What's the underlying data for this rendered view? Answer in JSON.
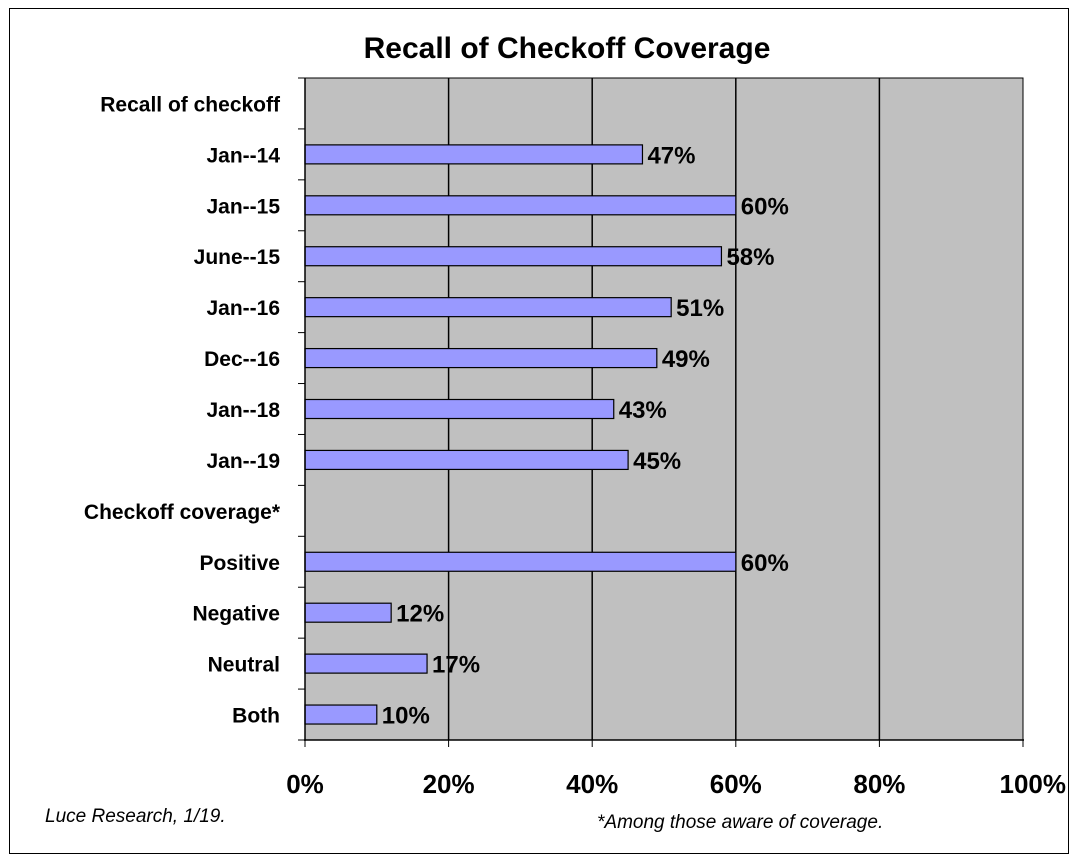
{
  "chart_data": {
    "type": "bar",
    "orientation": "horizontal",
    "title": "Recall of Checkoff Coverage",
    "xlabel": "",
    "ylabel": "",
    "xlim": [
      0,
      100
    ],
    "grid": true,
    "legend": "none",
    "categories": [
      "Recall of checkoff",
      "Jan--14",
      "Jan--15",
      "June--15",
      "Jan--16",
      "Dec--16",
      "Jan--18",
      "Jan--19",
      "Checkoff coverage*",
      "Positive",
      "Negative",
      "Neutral",
      "Both"
    ],
    "values": [
      null,
      47,
      60,
      58,
      51,
      49,
      43,
      45,
      null,
      60,
      12,
      17,
      10
    ],
    "value_labels": [
      "",
      "47%",
      "60%",
      "58%",
      "51%",
      "49%",
      "43%",
      "45%",
      "",
      "60%",
      "12%",
      "17%",
      "10%"
    ],
    "x_ticks": [
      0,
      20,
      40,
      60,
      80,
      100
    ],
    "x_tick_labels": [
      "0%",
      "20%",
      "40%",
      "60%",
      "80%",
      "100%"
    ],
    "colors": {
      "bar_fill": "#9999FF",
      "bar_stroke": "#000000",
      "plot_background": "#C0C0C0",
      "gridline": "#000000"
    }
  },
  "footer": {
    "source": "Luce Research, 1/19.",
    "note": "*Among those aware of coverage."
  }
}
